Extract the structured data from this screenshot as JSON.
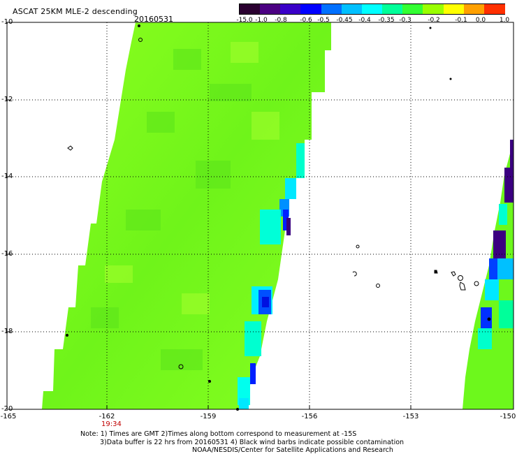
{
  "header": {
    "title": "ASCAT 25KM MLE-2 descending",
    "date": "20160531"
  },
  "colorbar": {
    "labels": [
      "-15.0",
      "-1.0",
      "-0.8",
      "-0.6",
      "-0.5",
      "-0.45",
      "-0.4",
      "-0.35",
      "-0.3",
      "-0.2",
      "-0.1",
      "0.0",
      "1.0"
    ],
    "colors": [
      "#2a0030",
      "#4b0082",
      "#3a00c8",
      "#0000ff",
      "#0070ff",
      "#00c0ff",
      "#00ffff",
      "#00ff9a",
      "#33ff33",
      "#9aff00",
      "#ffff00",
      "#ffa000",
      "#ff3000"
    ]
  },
  "axes": {
    "y_ticks": [
      "-10",
      "-12",
      "-14",
      "-16",
      "-18",
      "-20"
    ],
    "x_ticks": [
      "-165",
      "-162",
      "-159",
      "-156",
      "-153",
      "-150"
    ]
  },
  "time_label": "19:34",
  "notes": {
    "line1": "Note: 1) Times are GMT 2)Times along bottom correspond to measurement at -15S",
    "line2": "3)Data buffer is 22 hrs from 20160531 4) Black wind barbs indicate possible contamination",
    "line3": "NOAA/NESDIS/Center for Satellite Applications and Research"
  },
  "palette": {
    "swath_main": "#7bfc1c",
    "swath_dark": "#55e81a",
    "swath_light": "#a4ff2a",
    "cyan": "#00ffe0",
    "blue": "#0020ff",
    "purple": "#3b0080"
  }
}
